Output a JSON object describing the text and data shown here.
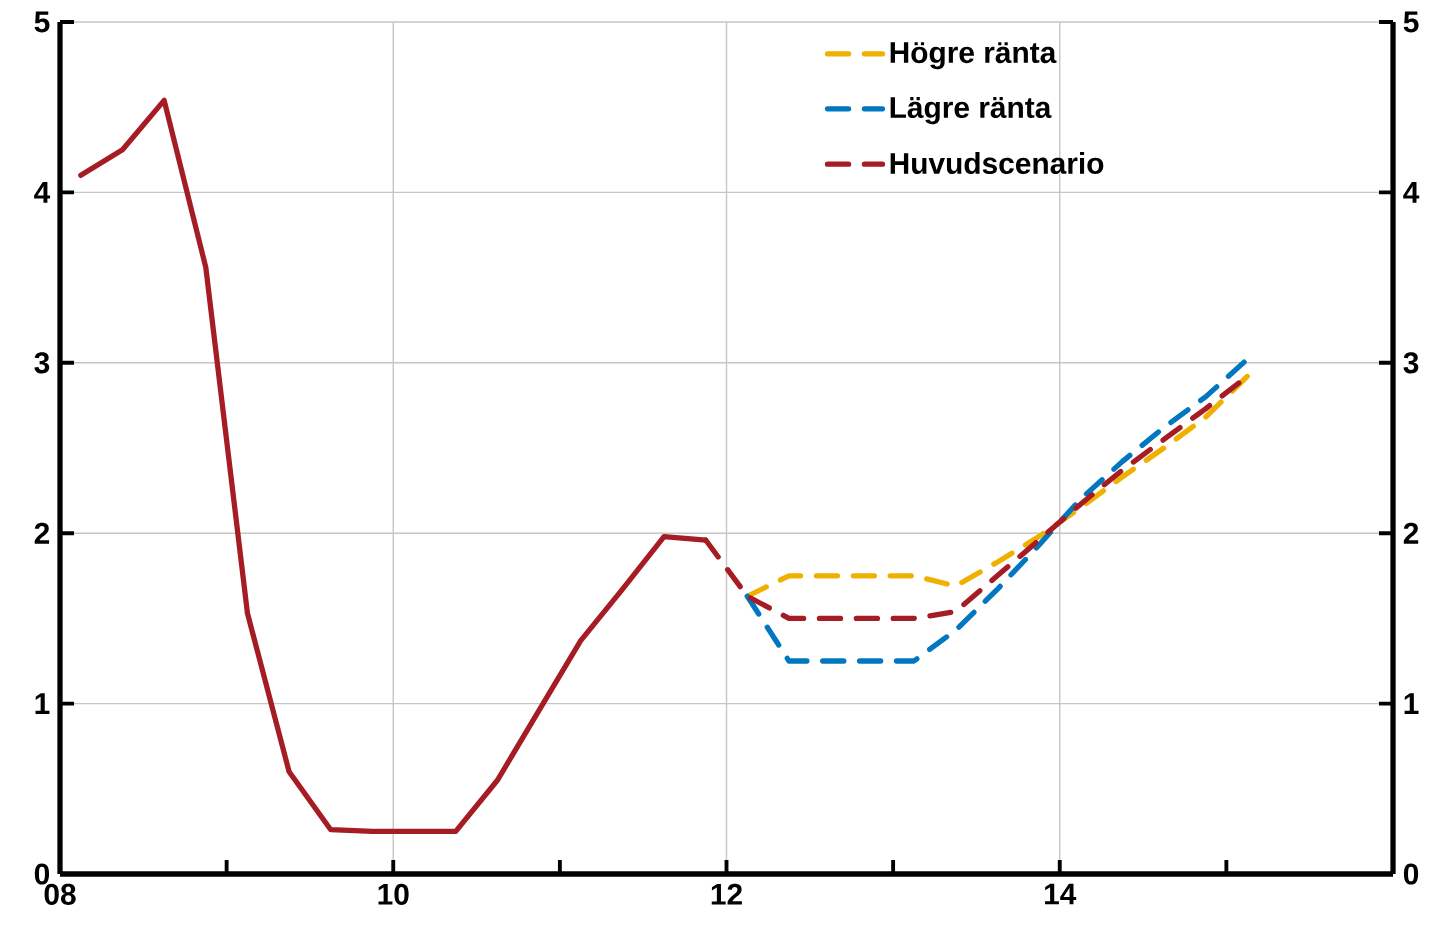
{
  "chart_data": {
    "type": "line",
    "xlim": [
      2008,
      2016
    ],
    "xticks": [
      {
        "value": 2008,
        "label": "08"
      },
      {
        "value": 2009,
        "label": null
      },
      {
        "value": 2010,
        "label": "10"
      },
      {
        "value": 2011,
        "label": null
      },
      {
        "value": 2012,
        "label": "12"
      },
      {
        "value": 2013,
        "label": null
      },
      {
        "value": 2014,
        "label": "14"
      },
      {
        "value": 2015,
        "label": null
      },
      {
        "value": 2016,
        "label": null
      }
    ],
    "ylim": [
      0,
      5
    ],
    "yticks": [
      0,
      1,
      2,
      3,
      4,
      5
    ],
    "y2lim": [
      0,
      5
    ],
    "y2ticks": [
      0,
      1,
      2,
      3,
      4,
      5
    ],
    "grid": true,
    "legend": "top",
    "marker": "none",
    "series": [
      {
        "color": "#a51c24",
        "line_style": "solid",
        "x": [
          2008.125,
          2008.375,
          2008.625,
          2008.875,
          2009.125,
          2009.375,
          2009.625,
          2009.875,
          2010.125,
          2010.375,
          2010.625,
          2010.875,
          2011.125,
          2011.375,
          2011.625,
          2011.875
        ],
        "values": [
          4.1,
          4.25,
          4.54,
          3.56,
          1.53,
          0.6,
          0.26,
          0.25,
          0.25,
          0.25,
          0.55,
          0.96,
          1.37,
          1.67,
          1.98,
          1.96
        ]
      },
      {
        "name": "Högre ränta",
        "color": "#f0b000",
        "line_style": "dashed",
        "x": [
          2012.125,
          2012.375,
          2012.625,
          2012.875,
          2013.125,
          2013.375,
          2013.625,
          2013.875,
          2014.125,
          2014.375,
          2014.625,
          2014.875,
          2015.125
        ],
        "values": [
          1.63,
          1.75,
          1.75,
          1.75,
          1.75,
          1.69,
          1.83,
          1.98,
          2.15,
          2.33,
          2.5,
          2.68,
          2.92
        ]
      },
      {
        "name": "Lägre ränta",
        "color": "#0077c0",
        "line_style": "dashed",
        "x": [
          2012.125,
          2012.375,
          2012.625,
          2012.875,
          2013.125,
          2013.375,
          2013.625,
          2013.875,
          2014.125,
          2014.375,
          2014.625,
          2014.875,
          2015.125
        ],
        "values": [
          1.63,
          1.25,
          1.25,
          1.25,
          1.25,
          1.43,
          1.67,
          1.93,
          2.2,
          2.42,
          2.62,
          2.8,
          3.02
        ]
      },
      {
        "name": "Huvudscenario",
        "color": "#a51c24",
        "line_style": "dashed",
        "x": [
          2011.875,
          2012.125,
          2012.375,
          2012.625,
          2012.875,
          2013.125,
          2013.375,
          2013.625,
          2013.875,
          2014.125,
          2014.375,
          2014.625,
          2014.875,
          2015.125
        ],
        "values": [
          1.96,
          1.63,
          1.5,
          1.5,
          1.5,
          1.5,
          1.54,
          1.75,
          1.96,
          2.17,
          2.37,
          2.55,
          2.73,
          2.92
        ]
      }
    ]
  }
}
